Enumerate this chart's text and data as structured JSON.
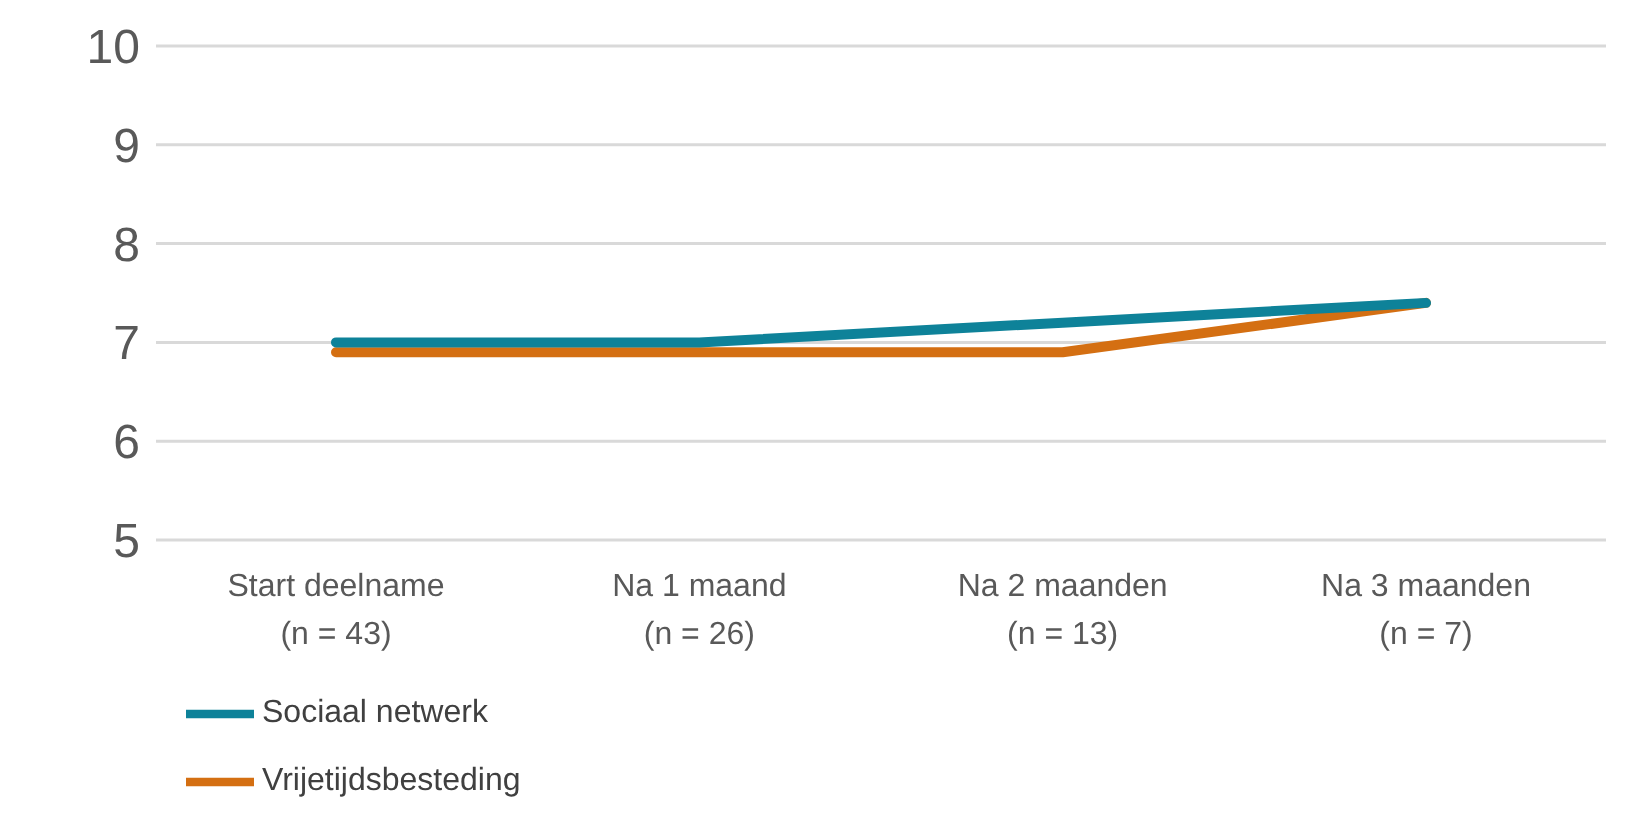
{
  "chart_data": {
    "type": "line",
    "categories": [
      "Start deelname\n(n = 43)",
      "Na 1 maand\n(n = 26)",
      "Na 2 maanden\n(n = 13)",
      "Na 3 maanden\n(n = 7)"
    ],
    "series": [
      {
        "name": "Vrijetijdsbesteding",
        "color": "#d46f12",
        "values": [
          6.9,
          6.9,
          6.9,
          7.4
        ]
      },
      {
        "name": "Sociaal netwerk",
        "color": "#0e8299",
        "values": [
          7.0,
          7.0,
          7.2,
          7.4
        ]
      }
    ],
    "ylim": [
      5,
      10
    ],
    "yticks": [
      5,
      6,
      7,
      8,
      9,
      10
    ],
    "grid": "y",
    "legend": "bottom left",
    "marker": "none",
    "line_style": "solid"
  }
}
